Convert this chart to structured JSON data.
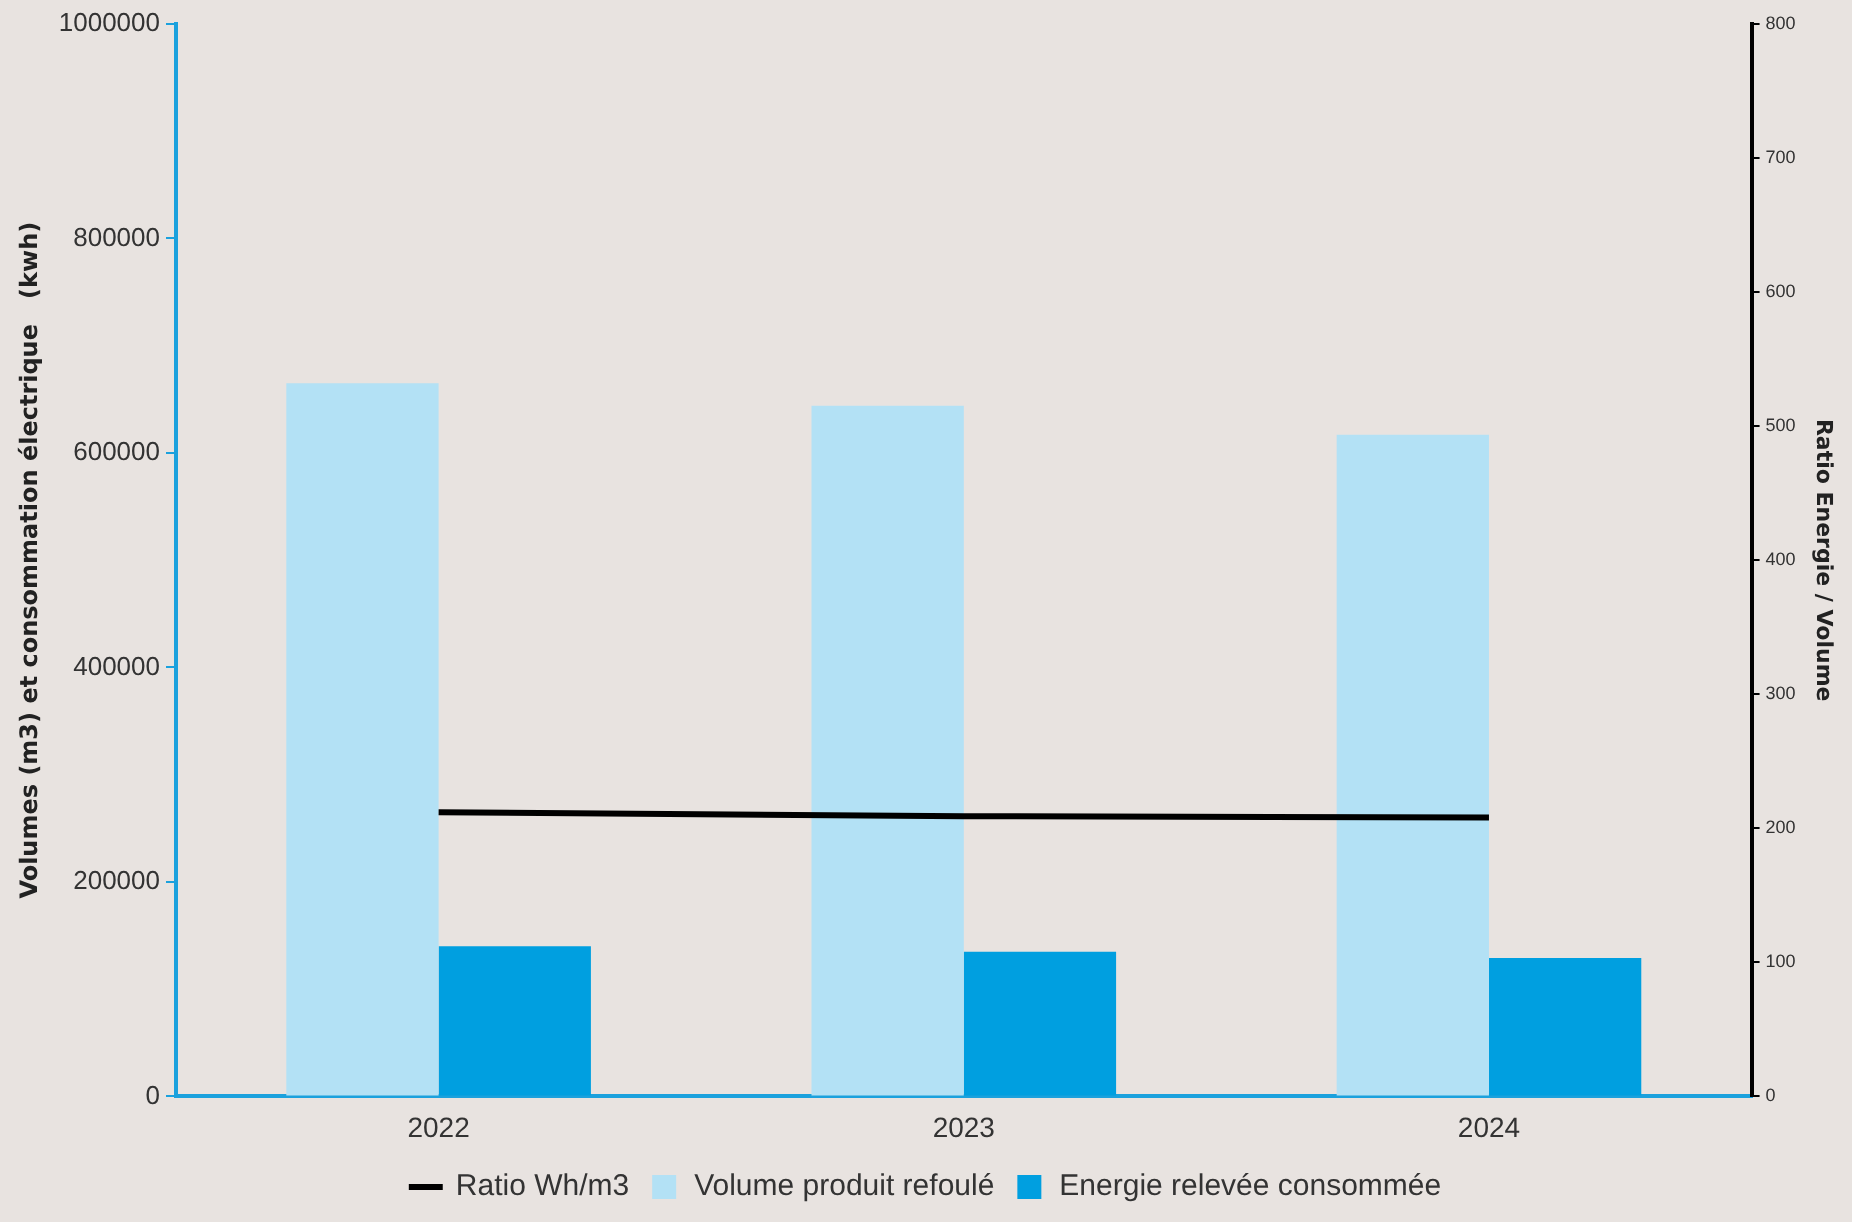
{
  "chart_data": {
    "type": "bar",
    "xlabel": null,
    "ylabel": "Volumes (m3) et consommation électrique   (kwh)",
    "y2label": "Ratio Energie / Volume",
    "categories": [
      "2022",
      "2023",
      "2024"
    ],
    "series": [
      {
        "name": "Volume produit refoulé",
        "color": "#b3e1f5",
        "values": [
          665000,
          644000,
          617000
        ]
      },
      {
        "name": "Energie relevée consommée",
        "color": "#009fe0",
        "values": [
          140000,
          135000,
          129000
        ]
      },
      {
        "name": "Ratio Wh/m3",
        "type": "line",
        "axis": "y2",
        "color": "#000000",
        "values": [
          212,
          209,
          208
        ]
      }
    ],
    "ylim": [
      0,
      1000000
    ],
    "yticks": [
      0,
      200000,
      400000,
      600000,
      800000,
      1000000
    ],
    "y2lim": [
      0,
      800
    ],
    "y2ticks": [
      0,
      100,
      200,
      300,
      400,
      500,
      600,
      700,
      800
    ],
    "grid": false,
    "legend": "bottom",
    "marker": "none"
  }
}
